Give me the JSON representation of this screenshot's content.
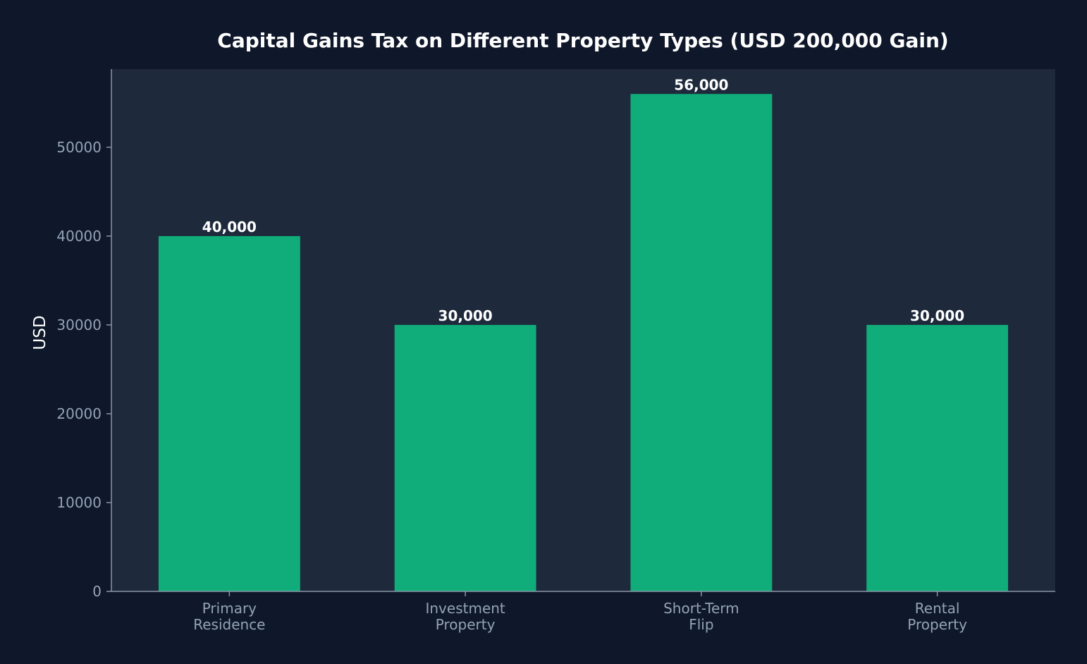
{
  "chart_data": {
    "type": "bar",
    "title": "Capital Gains Tax on Different Property Types (USD 200,000 Gain)",
    "xlabel": "",
    "ylabel": "USD",
    "categories": [
      [
        "Primary",
        "Residence"
      ],
      [
        "Investment",
        "Property"
      ],
      [
        "Short-Term",
        "Flip"
      ],
      [
        "Rental",
        "Property"
      ]
    ],
    "values": [
      40000,
      30000,
      56000,
      30000
    ],
    "data_labels": [
      "40,000",
      "30,000",
      "56,000",
      "30,000"
    ],
    "ylim": [
      0,
      58800
    ],
    "yticks": [
      0,
      10000,
      20000,
      30000,
      40000,
      50000
    ],
    "ytick_labels": [
      "0",
      "10000",
      "20000",
      "30000",
      "40000",
      "50000"
    ],
    "grid": false,
    "legend": "none",
    "colors": {
      "background": "#0f172a",
      "plot_area": "#1e293b",
      "bar": "#10ac79",
      "axis": "#8a96a8",
      "tick_text": "#94a3b8",
      "title_text": "#ffffff"
    }
  }
}
